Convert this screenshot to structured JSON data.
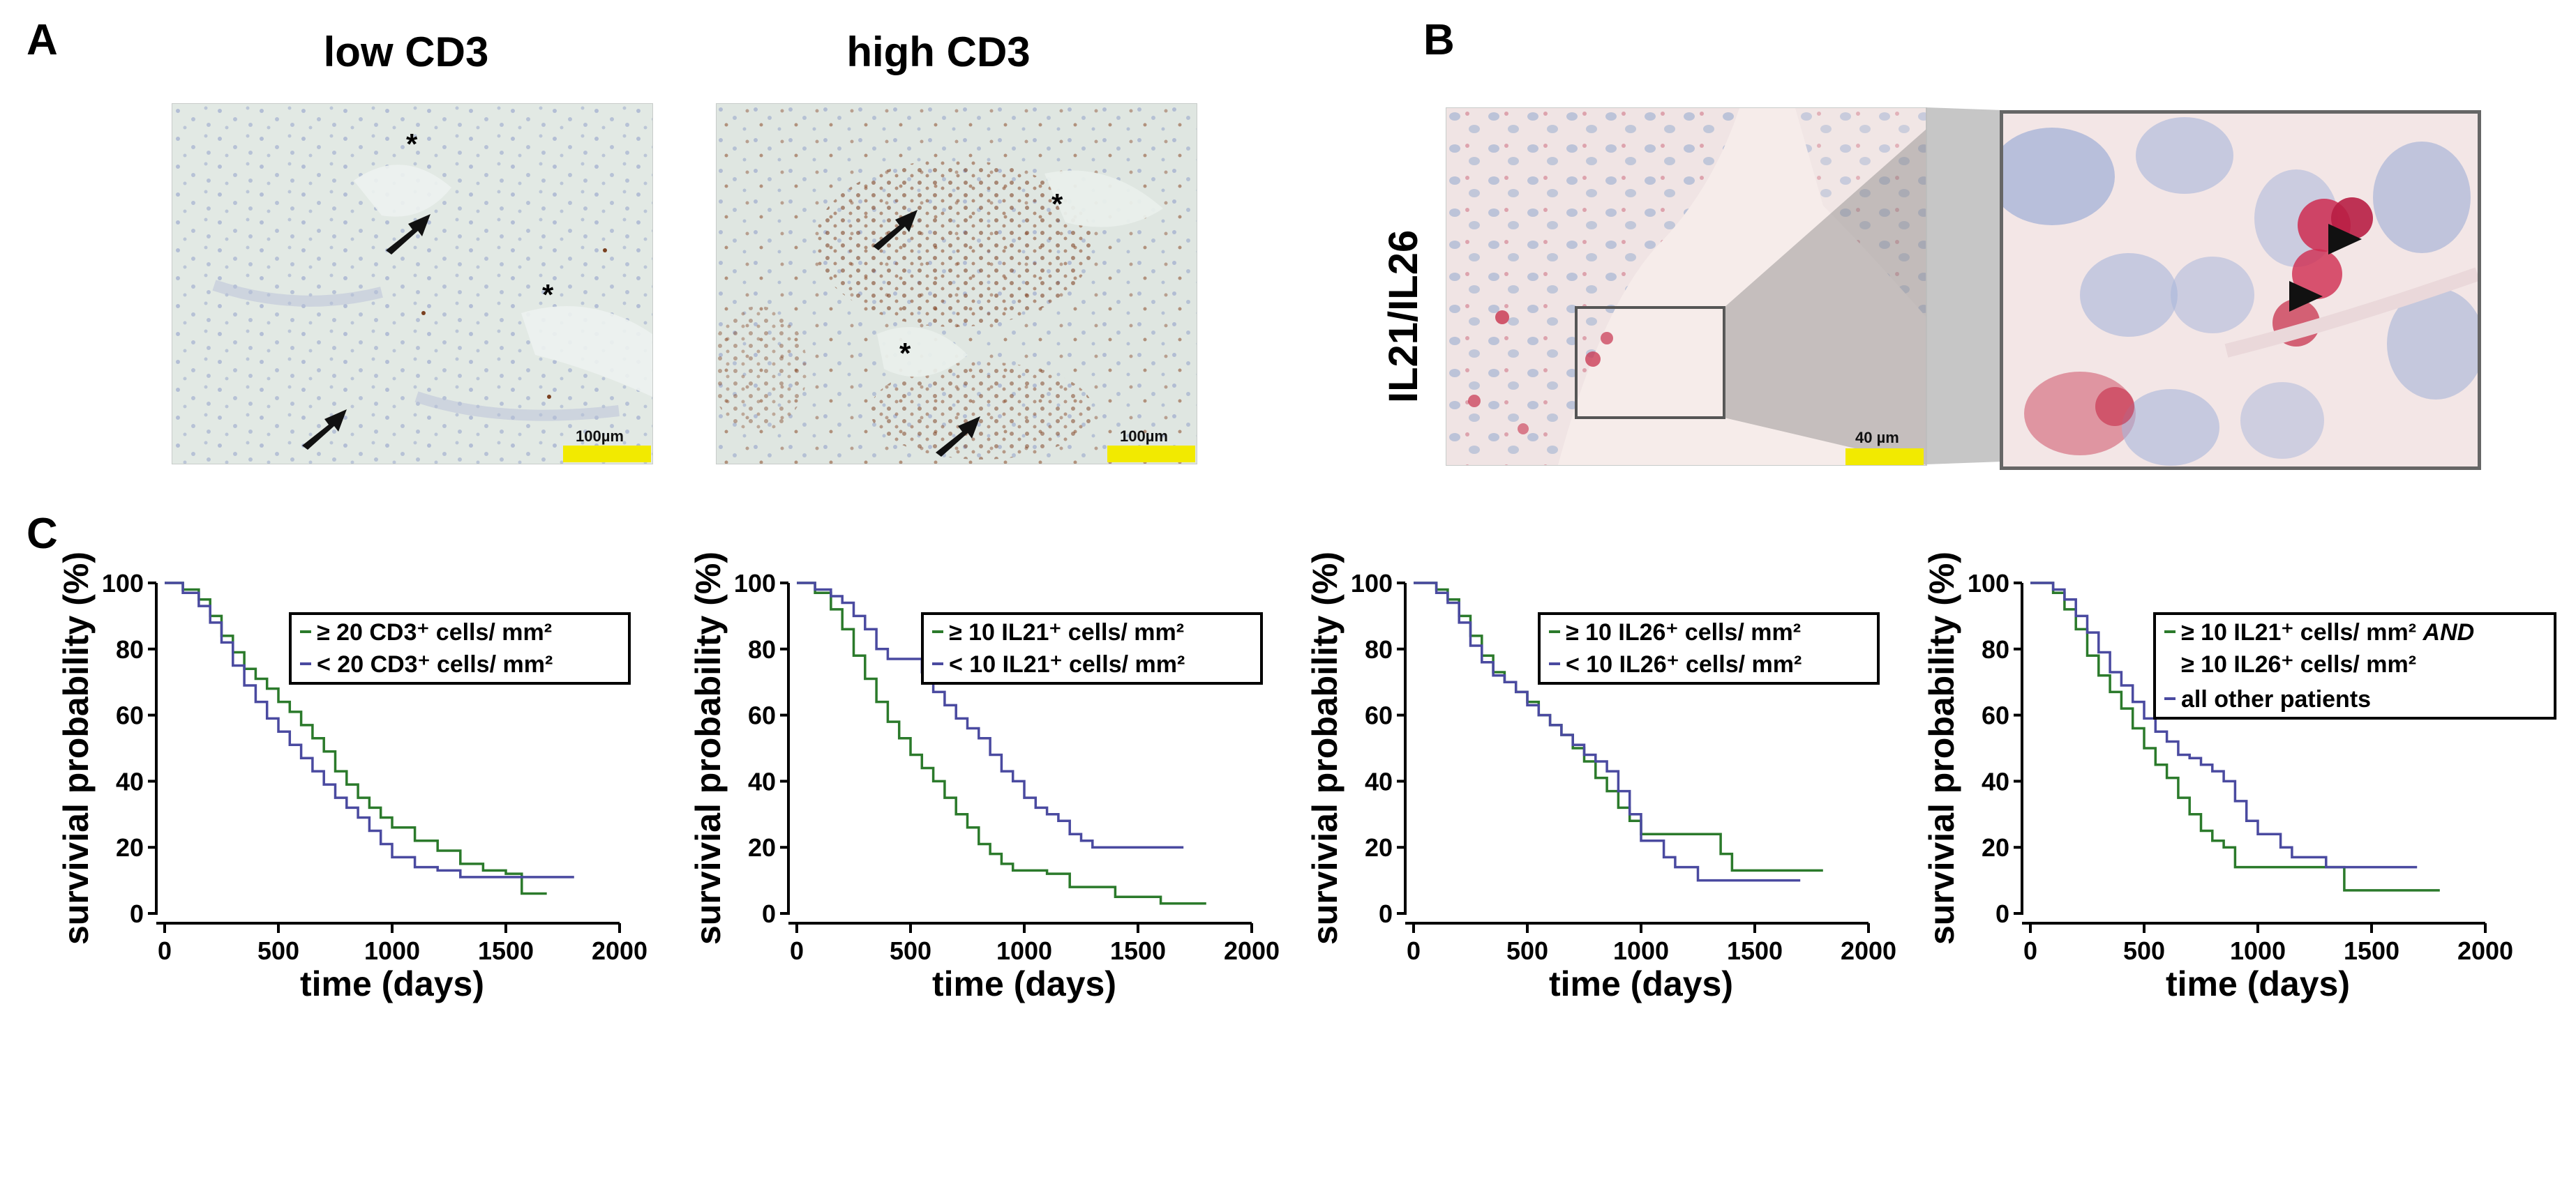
{
  "panels": {
    "a": "A",
    "b": "B",
    "c": "C"
  },
  "panel_a": {
    "titles": [
      "low CD3",
      "high CD3"
    ],
    "scale_labels": [
      "100µm",
      "100µm"
    ],
    "asterisk": "*"
  },
  "panel_b": {
    "stain_label": "IL21/IL26",
    "scale_label": "40 µm"
  },
  "colors": {
    "green": "#2b7a2b",
    "blue": "#4a4aa0",
    "scalebar": "#f2ea00",
    "tissue_bg": "#e4ebe6",
    "tissue_b_bg": "#f3e8e6"
  },
  "chart_data": [
    {
      "type": "line",
      "style": "kaplan-meier",
      "xlabel": "time (days)",
      "ylabel": "survivial probability (%)",
      "xticks": [
        0,
        500,
        1000,
        1500,
        2000
      ],
      "yticks": [
        0,
        20,
        40,
        60,
        80,
        100
      ],
      "xlim": [
        0,
        2000
      ],
      "ylim": [
        0,
        100
      ],
      "legend": "top-right",
      "series": [
        {
          "name": "≥ 20 CD3⁺ cells/ mm²",
          "color": "green",
          "x": [
            0,
            80,
            150,
            200,
            250,
            300,
            350,
            400,
            450,
            500,
            550,
            600,
            650,
            700,
            750,
            800,
            850,
            900,
            950,
            1000,
            1100,
            1200,
            1300,
            1400,
            1500,
            1570,
            1680
          ],
          "y": [
            100,
            98,
            95,
            90,
            84,
            79,
            74,
            71,
            68,
            64,
            61,
            57,
            53,
            49,
            43,
            39,
            35,
            32,
            29,
            26,
            22,
            19,
            15,
            13,
            12,
            6,
            6
          ]
        },
        {
          "name": "< 20 CD3⁺ cells/ mm²",
          "color": "blue",
          "x": [
            0,
            80,
            150,
            200,
            250,
            300,
            350,
            400,
            450,
            500,
            550,
            600,
            650,
            700,
            750,
            800,
            850,
            900,
            950,
            1000,
            1100,
            1200,
            1300,
            1400,
            1500,
            1600,
            1800
          ],
          "y": [
            100,
            97,
            93,
            88,
            82,
            75,
            69,
            64,
            59,
            55,
            51,
            47,
            43,
            39,
            35,
            32,
            29,
            25,
            21,
            17,
            14,
            13,
            11,
            11,
            11,
            11,
            11
          ]
        }
      ]
    },
    {
      "type": "line",
      "style": "kaplan-meier",
      "xlabel": "time (days)",
      "ylabel": "survivial probability (%)",
      "xticks": [
        0,
        500,
        1000,
        1500,
        2000
      ],
      "yticks": [
        0,
        20,
        40,
        60,
        80,
        100
      ],
      "xlim": [
        0,
        2000
      ],
      "ylim": [
        0,
        100
      ],
      "legend": "top-right",
      "series": [
        {
          "name": "≥ 10 IL21⁺ cells/ mm²",
          "color": "green",
          "x": [
            0,
            80,
            150,
            200,
            250,
            300,
            350,
            400,
            450,
            500,
            550,
            600,
            650,
            700,
            750,
            800,
            850,
            900,
            950,
            1000,
            1100,
            1200,
            1300,
            1400,
            1500,
            1600,
            1800
          ],
          "y": [
            100,
            97,
            92,
            86,
            78,
            71,
            64,
            58,
            53,
            48,
            44,
            40,
            35,
            30,
            26,
            21,
            18,
            15,
            13,
            13,
            12,
            8,
            8,
            5,
            5,
            3,
            3
          ]
        },
        {
          "name": "< 10 IL21⁺ cells/ mm²",
          "color": "blue",
          "x": [
            0,
            80,
            150,
            200,
            250,
            300,
            350,
            400,
            500,
            550,
            600,
            650,
            700,
            750,
            800,
            850,
            900,
            950,
            1000,
            1050,
            1100,
            1150,
            1200,
            1250,
            1300,
            1700
          ],
          "y": [
            100,
            98,
            96,
            94,
            90,
            86,
            80,
            77,
            77,
            73,
            67,
            63,
            59,
            56,
            53,
            48,
            43,
            40,
            35,
            32,
            30,
            28,
            24,
            22,
            20,
            20
          ]
        }
      ]
    },
    {
      "type": "line",
      "style": "kaplan-meier",
      "xlabel": "time (days)",
      "ylabel": "survivial probability (%)",
      "xticks": [
        0,
        500,
        1000,
        1500,
        2000
      ],
      "yticks": [
        0,
        20,
        40,
        60,
        80,
        100
      ],
      "xlim": [
        0,
        2000
      ],
      "ylim": [
        0,
        100
      ],
      "legend": "top-right",
      "series": [
        {
          "name": "≥ 10 IL26⁺ cells/ mm²",
          "color": "green",
          "x": [
            0,
            100,
            150,
            200,
            250,
            300,
            350,
            400,
            450,
            500,
            550,
            600,
            650,
            700,
            750,
            800,
            850,
            900,
            950,
            1000,
            1100,
            1200,
            1280,
            1350,
            1400,
            1800
          ],
          "y": [
            100,
            98,
            95,
            90,
            84,
            78,
            73,
            70,
            67,
            64,
            60,
            57,
            54,
            50,
            46,
            41,
            37,
            32,
            28,
            24,
            24,
            24,
            24,
            18,
            13,
            13
          ]
        },
        {
          "name": "< 10 IL26⁺ cells/ mm²",
          "color": "blue",
          "x": [
            0,
            100,
            150,
            200,
            250,
            300,
            350,
            400,
            450,
            500,
            550,
            600,
            650,
            700,
            750,
            800,
            850,
            900,
            950,
            1000,
            1100,
            1150,
            1250,
            1700
          ],
          "y": [
            100,
            97,
            94,
            88,
            81,
            76,
            72,
            70,
            67,
            63,
            60,
            57,
            54,
            51,
            48,
            46,
            43,
            37,
            30,
            22,
            17,
            14,
            10,
            10
          ]
        }
      ]
    },
    {
      "type": "line",
      "style": "kaplan-meier",
      "xlabel": "time (days)",
      "ylabel": "survivial probability (%)",
      "xticks": [
        0,
        500,
        1000,
        1500,
        2000
      ],
      "yticks": [
        0,
        20,
        40,
        60,
        80,
        100
      ],
      "xlim": [
        0,
        2000
      ],
      "ylim": [
        0,
        100
      ],
      "legend": "top-right",
      "series": [
        {
          "name": "≥ 10 IL21⁺ cells/ mm² AND ≥ 10 IL26⁺ cells/ mm²",
          "color": "green",
          "x": [
            0,
            100,
            150,
            200,
            250,
            300,
            350,
            400,
            450,
            500,
            550,
            600,
            650,
            700,
            750,
            800,
            850,
            900,
            1000,
            1100,
            1200,
            1300,
            1380,
            1500,
            1800
          ],
          "y": [
            100,
            97,
            92,
            86,
            78,
            72,
            67,
            62,
            56,
            50,
            45,
            41,
            35,
            30,
            25,
            22,
            20,
            14,
            14,
            14,
            14,
            14,
            7,
            7,
            7
          ]
        },
        {
          "name": "all other patients",
          "color": "blue",
          "x": [
            0,
            100,
            150,
            200,
            250,
            300,
            350,
            400,
            450,
            500,
            550,
            600,
            650,
            700,
            750,
            800,
            850,
            900,
            950,
            1000,
            1100,
            1150,
            1300,
            1700
          ],
          "y": [
            100,
            98,
            95,
            90,
            85,
            79,
            73,
            69,
            64,
            59,
            55,
            52,
            48,
            47,
            45,
            43,
            40,
            34,
            28,
            24,
            20,
            17,
            14,
            14
          ]
        }
      ]
    }
  ]
}
